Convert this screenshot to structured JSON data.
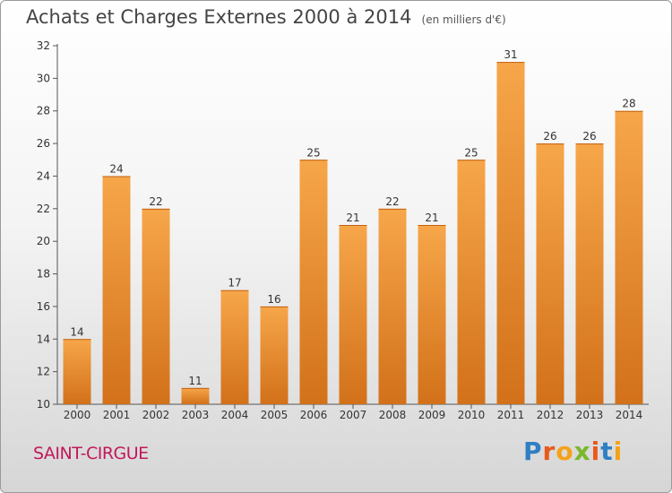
{
  "chart_data": {
    "type": "bar",
    "title": "Achats et Charges Externes 2000 à 2014",
    "subtitle": "(en milliers d'€)",
    "categories": [
      "2000",
      "2001",
      "2002",
      "2003",
      "2004",
      "2005",
      "2006",
      "2007",
      "2008",
      "2009",
      "2010",
      "2011",
      "2012",
      "2013",
      "2014"
    ],
    "values": [
      14,
      24,
      22,
      11,
      17,
      16,
      25,
      21,
      22,
      21,
      25,
      31,
      26,
      26,
      28
    ],
    "ylim": [
      10,
      32
    ],
    "yticks": [
      10,
      12,
      14,
      16,
      18,
      20,
      22,
      24,
      26,
      28,
      30,
      32
    ],
    "grid": false,
    "legend": "none",
    "bar_color_top": "#f7a64a",
    "bar_color_bottom": "#d2711a"
  },
  "footer": {
    "town": "SAINT-CIRGUE",
    "logo": [
      "P",
      "r",
      "o",
      "x",
      "i",
      "t",
      "i"
    ],
    "logo_colors": [
      "#2e7fc4",
      "#e85a1c",
      "#f5a21a",
      "#7ab82c",
      "#e85a1c",
      "#2e7fc4",
      "#f5a21a"
    ]
  }
}
